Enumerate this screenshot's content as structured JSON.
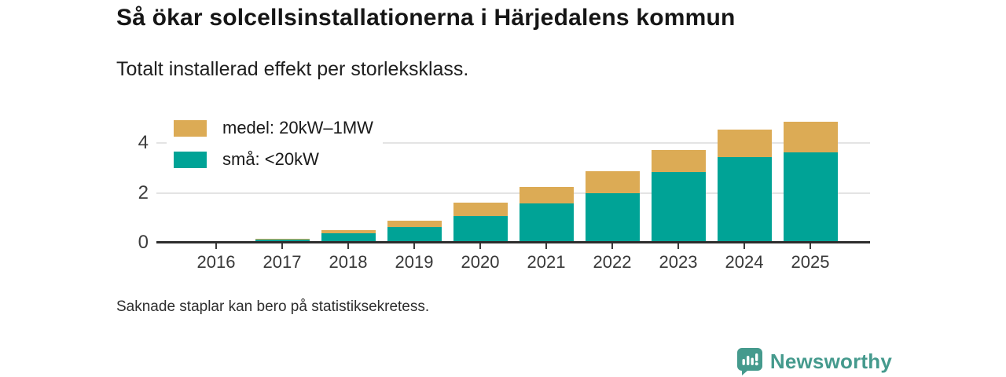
{
  "header": {
    "title": "Så ökar solcellsinstallationerna i Härjedalens kommun",
    "subtitle": "Totalt installerad effekt per storleksklass."
  },
  "footer": {
    "note": "Saknade staplar kan bero på statistiksekretess.",
    "brand": "Newsworthy"
  },
  "colors": {
    "sma": "#00a396",
    "medel": "#dcab55",
    "brand": "#459a8d",
    "grid": "#e4e4e4",
    "axis_line": "#2d2d2d",
    "text": "#1a1a1a"
  },
  "chart_data": {
    "type": "bar",
    "stacked": true,
    "title": "Så ökar solcellsinstallationerna i Härjedalens kommun",
    "subtitle": "Totalt installerad effekt per storleksklass.",
    "note": "Saknade staplar kan bero på statistiksekretess.",
    "categories": [
      "2016",
      "2017",
      "2018",
      "2019",
      "2020",
      "2021",
      "2022",
      "2023",
      "2024",
      "2025"
    ],
    "series": [
      {
        "name": "små: <20kW",
        "key": "sma",
        "color": "#00a396",
        "values": [
          0,
          0.13,
          0.38,
          0.64,
          1.07,
          1.58,
          2.0,
          2.83,
          3.46,
          3.65
        ]
      },
      {
        "name": "medel: 20kW–1MW",
        "key": "medel",
        "color": "#dcab55",
        "values": [
          0.06,
          0.04,
          0.14,
          0.23,
          0.54,
          0.65,
          0.88,
          0.9,
          1.1,
          1.23
        ]
      }
    ],
    "legend_order": [
      "medel",
      "sma"
    ],
    "legend_position": "top-left-inside",
    "xlabel": "",
    "ylabel": "",
    "yticks": [
      0,
      2,
      4
    ],
    "ylim": [
      0,
      5.34
    ],
    "grid": "horizontal"
  }
}
